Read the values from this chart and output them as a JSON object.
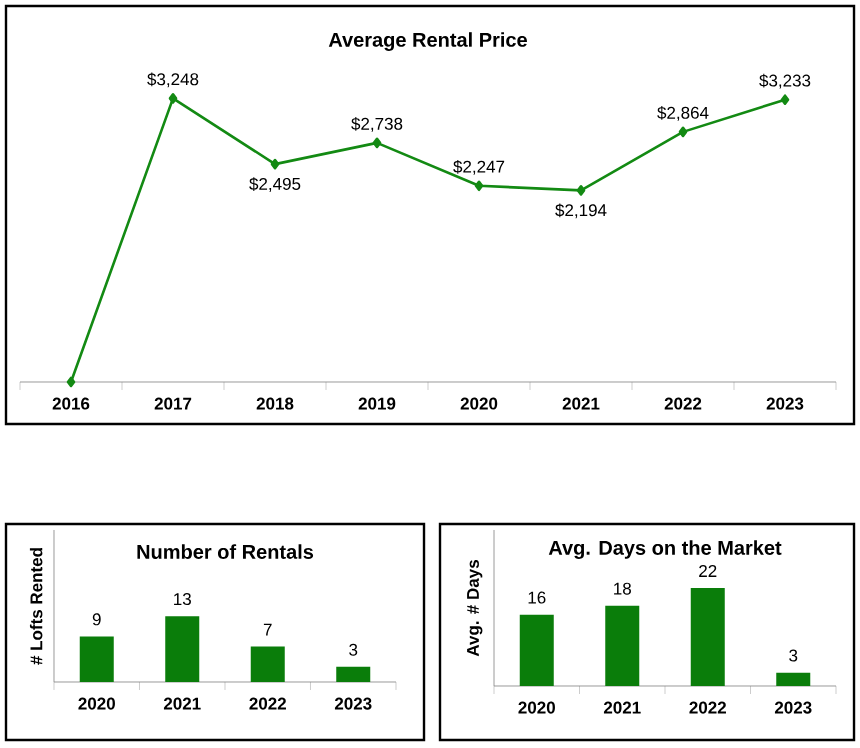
{
  "chart_data": [
    {
      "type": "line",
      "title": "Average Rental Price",
      "categories": [
        "2016",
        "2017",
        "2018",
        "2019",
        "2020",
        "2021",
        "2022",
        "2023"
      ],
      "values": [
        0,
        3248,
        2495,
        2738,
        2247,
        2194,
        2864,
        3233
      ],
      "value_labels": [
        null,
        "$3,248",
        "$2,495",
        "$2,738",
        "$2,247",
        "$2,194",
        "$2,864",
        "$3,233"
      ],
      "color": "#138a13",
      "marker": "diamond",
      "tick_labels": "x"
    },
    {
      "type": "bar",
      "title": "Number of Rentals",
      "ylabel": "# Lofts Rented",
      "categories": [
        "2020",
        "2021",
        "2022",
        "2023"
      ],
      "values": [
        9,
        13,
        7,
        3
      ],
      "data_labels": true,
      "color": "#0a7d0a",
      "ylim": [
        0,
        30
      ],
      "tick_labels": "x"
    },
    {
      "type": "bar",
      "title": "Avg. Days on the Market",
      "ylabel": "Avg. # Days",
      "categories": [
        "2020",
        "2021",
        "2022",
        "2023"
      ],
      "values": [
        16,
        18,
        22,
        3
      ],
      "data_labels": true,
      "color": "#0a7d0a",
      "ylim": [
        0,
        35
      ],
      "tick_labels": "x"
    }
  ]
}
